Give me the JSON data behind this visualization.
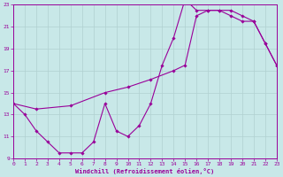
{
  "xlabel": "Windchill (Refroidissement éolien,°C)",
  "bg_color": "#c8e8e8",
  "line_color": "#990099",
  "grid_color": "#b0d0d0",
  "xmin": 0,
  "xmax": 23,
  "ymin": 9,
  "ymax": 23,
  "xticks": [
    0,
    1,
    2,
    3,
    4,
    5,
    6,
    7,
    8,
    9,
    10,
    11,
    12,
    13,
    14,
    15,
    16,
    17,
    18,
    19,
    20,
    21,
    22,
    23
  ],
  "yticks": [
    9,
    11,
    13,
    15,
    17,
    19,
    21,
    23
  ],
  "line1_x": [
    0,
    1,
    2,
    3,
    4,
    5,
    6,
    7,
    8,
    9,
    10,
    11,
    12,
    13,
    14,
    15,
    16,
    17,
    18,
    19,
    20,
    21,
    22,
    23
  ],
  "line1_y": [
    14,
    13,
    11.5,
    10.5,
    9.5,
    9.5,
    9.5,
    10.5,
    14.0,
    11.5,
    11,
    12,
    14,
    17.5,
    20.0,
    23.5,
    22.5,
    22.5,
    22.5,
    22.0,
    21.5,
    21.5,
    19.5,
    17.5
  ],
  "line2_x": [
    0,
    2,
    5,
    8,
    10,
    12,
    14,
    15,
    16,
    17,
    18,
    19,
    20,
    21,
    22,
    23
  ],
  "line2_y": [
    14,
    13.5,
    13.8,
    15.0,
    15.5,
    16.2,
    17.0,
    17.5,
    22.0,
    22.5,
    22.5,
    22.5,
    22.0,
    21.5,
    19.5,
    17.5
  ]
}
